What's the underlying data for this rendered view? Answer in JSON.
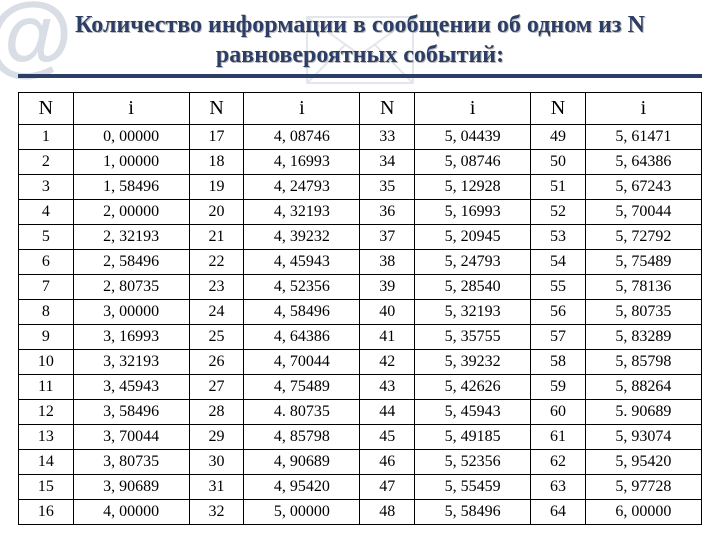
{
  "title": "Количество информации в сообщении об одном из N равновероятных событий:",
  "table": {
    "headers": [
      "N",
      "i",
      "N",
      "i",
      "N",
      "i",
      "N",
      "i"
    ],
    "rows": [
      [
        "1",
        "0, 00000",
        "17",
        "4, 08746",
        "33",
        "5, 04439",
        "49",
        "5, 61471"
      ],
      [
        "2",
        "1, 00000",
        "18",
        "4, 16993",
        "34",
        "5, 08746",
        "50",
        "5, 64386"
      ],
      [
        "3",
        "1, 58496",
        "19",
        "4, 24793",
        "35",
        "5, 12928",
        "51",
        "5, 67243"
      ],
      [
        "4",
        "2, 00000",
        "20",
        "4, 32193",
        "36",
        "5, 16993",
        "52",
        "5, 70044"
      ],
      [
        "5",
        "2, 32193",
        "21",
        "4, 39232",
        "37",
        "5, 20945",
        "53",
        "5, 72792"
      ],
      [
        "6",
        "2, 58496",
        "22",
        "4, 45943",
        "38",
        "5, 24793",
        "54",
        "5, 75489"
      ],
      [
        "7",
        "2, 80735",
        "23",
        "4, 52356",
        "39",
        "5, 28540",
        "55",
        "5, 78136"
      ],
      [
        "8",
        "3, 00000",
        "24",
        "4, 58496",
        "40",
        "5, 32193",
        "56",
        "5, 80735"
      ],
      [
        "9",
        "3, 16993",
        "25",
        "4, 64386",
        "41",
        "5, 35755",
        "57",
        "5, 83289"
      ],
      [
        "10",
        "3, 32193",
        "26",
        "4, 70044",
        "42",
        "5, 39232",
        "58",
        "5, 85798"
      ],
      [
        "11",
        "3, 45943",
        "27",
        "4, 75489",
        "43",
        "5, 42626",
        "59",
        "5, 88264"
      ],
      [
        "12",
        "3, 58496",
        "28",
        "4. 80735",
        "44",
        "5, 45943",
        "60",
        "5. 90689"
      ],
      [
        "13",
        "3, 70044",
        "29",
        "4, 85798",
        "45",
        "5, 49185",
        "61",
        "5, 93074"
      ],
      [
        "14",
        "3, 80735",
        "30",
        "4, 90689",
        "46",
        "5, 52356",
        "62",
        "5, 95420"
      ],
      [
        "15",
        "3, 90689",
        "31",
        "4, 95420",
        "47",
        "5, 55459",
        "63",
        "5, 97728"
      ],
      [
        "16",
        "4, 00000",
        "32",
        "5, 00000",
        "48",
        "5, 58496",
        "64",
        "6, 00000"
      ]
    ]
  }
}
